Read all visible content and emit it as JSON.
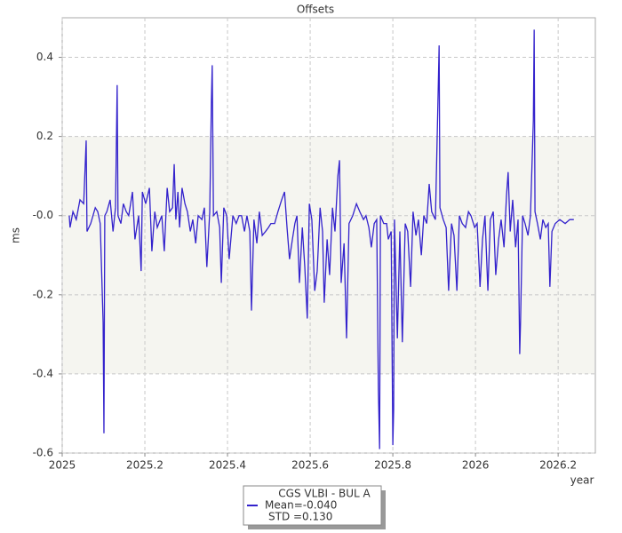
{
  "chart_data": {
    "type": "line",
    "title": "Offsets",
    "xlabel": "year",
    "ylabel": "ms",
    "xlim": [
      2025,
      2026.29
    ],
    "ylim": [
      -0.6,
      0.5
    ],
    "xticks": [
      2025,
      2025.2,
      2025.4,
      2025.6,
      2025.8,
      2026,
      2026.2
    ],
    "yticks": [
      0.4,
      0.2,
      {
        "value": 0,
        "label": "-0.0"
      },
      -0.2,
      -0.4,
      -0.6
    ],
    "band": [
      -0.4,
      0.2
    ],
    "grid": true,
    "legend": "bottom",
    "x": [
      2025.017,
      2025.019,
      2025.026,
      2025.034,
      2025.043,
      2025.052,
      2025.058,
      2025.06,
      2025.069,
      2025.08,
      2025.086,
      2025.092,
      2025.099,
      2025.101,
      2025.103,
      2025.108,
      2025.116,
      2025.123,
      2025.129,
      2025.133,
      2025.135,
      2025.142,
      2025.148,
      2025.155,
      2025.161,
      2025.17,
      2025.176,
      2025.185,
      2025.191,
      2025.194,
      2025.202,
      2025.211,
      2025.217,
      2025.224,
      2025.23,
      2025.241,
      2025.247,
      2025.254,
      2025.26,
      2025.267,
      2025.271,
      2025.275,
      2025.28,
      2025.284,
      2025.29,
      2025.297,
      2025.303,
      2025.31,
      2025.316,
      2025.323,
      2025.329,
      2025.338,
      2025.344,
      2025.35,
      2025.357,
      2025.361,
      2025.363,
      2025.366,
      2025.374,
      2025.381,
      2025.385,
      2025.391,
      2025.398,
      2025.404,
      2025.413,
      2025.421,
      2025.428,
      2025.434,
      2025.441,
      2025.447,
      2025.454,
      2025.458,
      2025.464,
      2025.471,
      2025.477,
      2025.484,
      2025.492,
      2025.499,
      2025.505,
      2025.514,
      2025.522,
      2025.531,
      2025.538,
      2025.544,
      2025.55,
      2025.557,
      2025.563,
      2025.568,
      2025.574,
      2025.581,
      2025.587,
      2025.593,
      2025.598,
      2025.604,
      2025.611,
      2025.617,
      2025.624,
      2025.63,
      2025.634,
      2025.641,
      2025.647,
      2025.654,
      2025.66,
      2025.667,
      2025.671,
      2025.675,
      2025.682,
      2025.688,
      2025.694,
      2025.703,
      2025.712,
      2025.72,
      2025.729,
      2025.735,
      2025.742,
      2025.748,
      2025.755,
      2025.761,
      2025.765,
      2025.768,
      2025.77,
      2025.778,
      2025.785,
      2025.789,
      2025.796,
      2025.8,
      2025.802,
      2025.804,
      2025.811,
      2025.817,
      2025.823,
      2025.83,
      2025.836,
      2025.843,
      2025.849,
      2025.856,
      2025.862,
      2025.869,
      2025.875,
      2025.882,
      2025.888,
      2025.894,
      2025.903,
      2025.909,
      2025.912,
      2025.914,
      2025.922,
      2025.929,
      2025.935,
      2025.942,
      2025.948,
      2025.955,
      2025.961,
      2025.968,
      2025.976,
      2025.983,
      2025.989,
      2025.998,
      2026.004,
      2026.011,
      2026.017,
      2026.023,
      2026.03,
      2026.036,
      2026.043,
      2026.049,
      2026.056,
      2026.062,
      2026.069,
      2026.075,
      2026.079,
      2026.084,
      2026.09,
      2026.097,
      2026.103,
      2026.107,
      2026.109,
      2026.114,
      2026.12,
      2026.127,
      2026.133,
      2026.14,
      2026.142,
      2026.144,
      2026.15,
      2026.157,
      2026.163,
      2026.17,
      2026.176,
      2026.18,
      2026.185,
      2026.193,
      2026.204,
      2026.217,
      2026.228,
      2026.238
    ],
    "series": [
      {
        "name": "CGS VLBI - BUL A",
        "legend_lines": [
          "Mean=-0.040",
          "STD =0.130"
        ],
        "color": "#3322cc",
        "values": [
          0.0,
          -0.03,
          0.01,
          -0.01,
          0.04,
          0.03,
          0.19,
          -0.04,
          -0.02,
          0.02,
          0.01,
          -0.02,
          -0.27,
          -0.55,
          0.0,
          0.01,
          0.04,
          -0.04,
          0.02,
          0.33,
          0.0,
          -0.02,
          0.03,
          0.01,
          0.0,
          0.06,
          -0.06,
          0.0,
          -0.14,
          0.06,
          0.03,
          0.07,
          -0.09,
          0.01,
          -0.03,
          0.0,
          -0.09,
          0.07,
          0.01,
          0.02,
          0.13,
          -0.01,
          0.06,
          -0.03,
          0.07,
          0.03,
          0.01,
          -0.04,
          -0.01,
          -0.07,
          0.0,
          -0.01,
          0.02,
          -0.13,
          0.01,
          0.29,
          0.38,
          0.0,
          0.01,
          -0.03,
          -0.17,
          0.02,
          0.0,
          -0.11,
          0.0,
          -0.02,
          0.0,
          0.0,
          -0.04,
          0.0,
          -0.04,
          -0.24,
          -0.01,
          -0.07,
          0.01,
          -0.05,
          -0.04,
          -0.03,
          -0.02,
          -0.02,
          0.01,
          0.04,
          0.06,
          -0.03,
          -0.11,
          -0.06,
          -0.02,
          0.0,
          -0.17,
          -0.03,
          -0.13,
          -0.26,
          0.03,
          -0.01,
          -0.19,
          -0.14,
          0.02,
          -0.04,
          -0.22,
          -0.06,
          -0.15,
          0.02,
          -0.04,
          0.1,
          0.14,
          -0.17,
          -0.07,
          -0.31,
          -0.02,
          0.0,
          0.03,
          0.01,
          -0.01,
          0.0,
          -0.03,
          -0.08,
          -0.02,
          -0.01,
          -0.44,
          -0.59,
          0.0,
          -0.02,
          -0.02,
          -0.06,
          -0.04,
          -0.58,
          -0.49,
          -0.01,
          -0.31,
          -0.04,
          -0.32,
          -0.02,
          -0.04,
          -0.18,
          0.01,
          -0.05,
          -0.01,
          -0.1,
          0.0,
          -0.02,
          0.08,
          0.01,
          -0.01,
          0.28,
          0.43,
          0.02,
          -0.01,
          -0.03,
          -0.19,
          -0.02,
          -0.05,
          -0.19,
          0.0,
          -0.02,
          -0.03,
          0.01,
          0.0,
          -0.03,
          -0.02,
          -0.18,
          -0.06,
          0.0,
          -0.19,
          -0.01,
          0.01,
          -0.15,
          -0.06,
          -0.01,
          -0.08,
          0.05,
          0.11,
          -0.04,
          0.04,
          -0.08,
          -0.01,
          -0.35,
          -0.27,
          0.0,
          -0.02,
          -0.05,
          0.0,
          0.24,
          0.47,
          0.01,
          -0.02,
          -0.06,
          -0.01,
          -0.03,
          -0.02,
          -0.18,
          -0.04,
          -0.02,
          -0.01,
          -0.02,
          -0.01,
          -0.01
        ]
      }
    ]
  }
}
